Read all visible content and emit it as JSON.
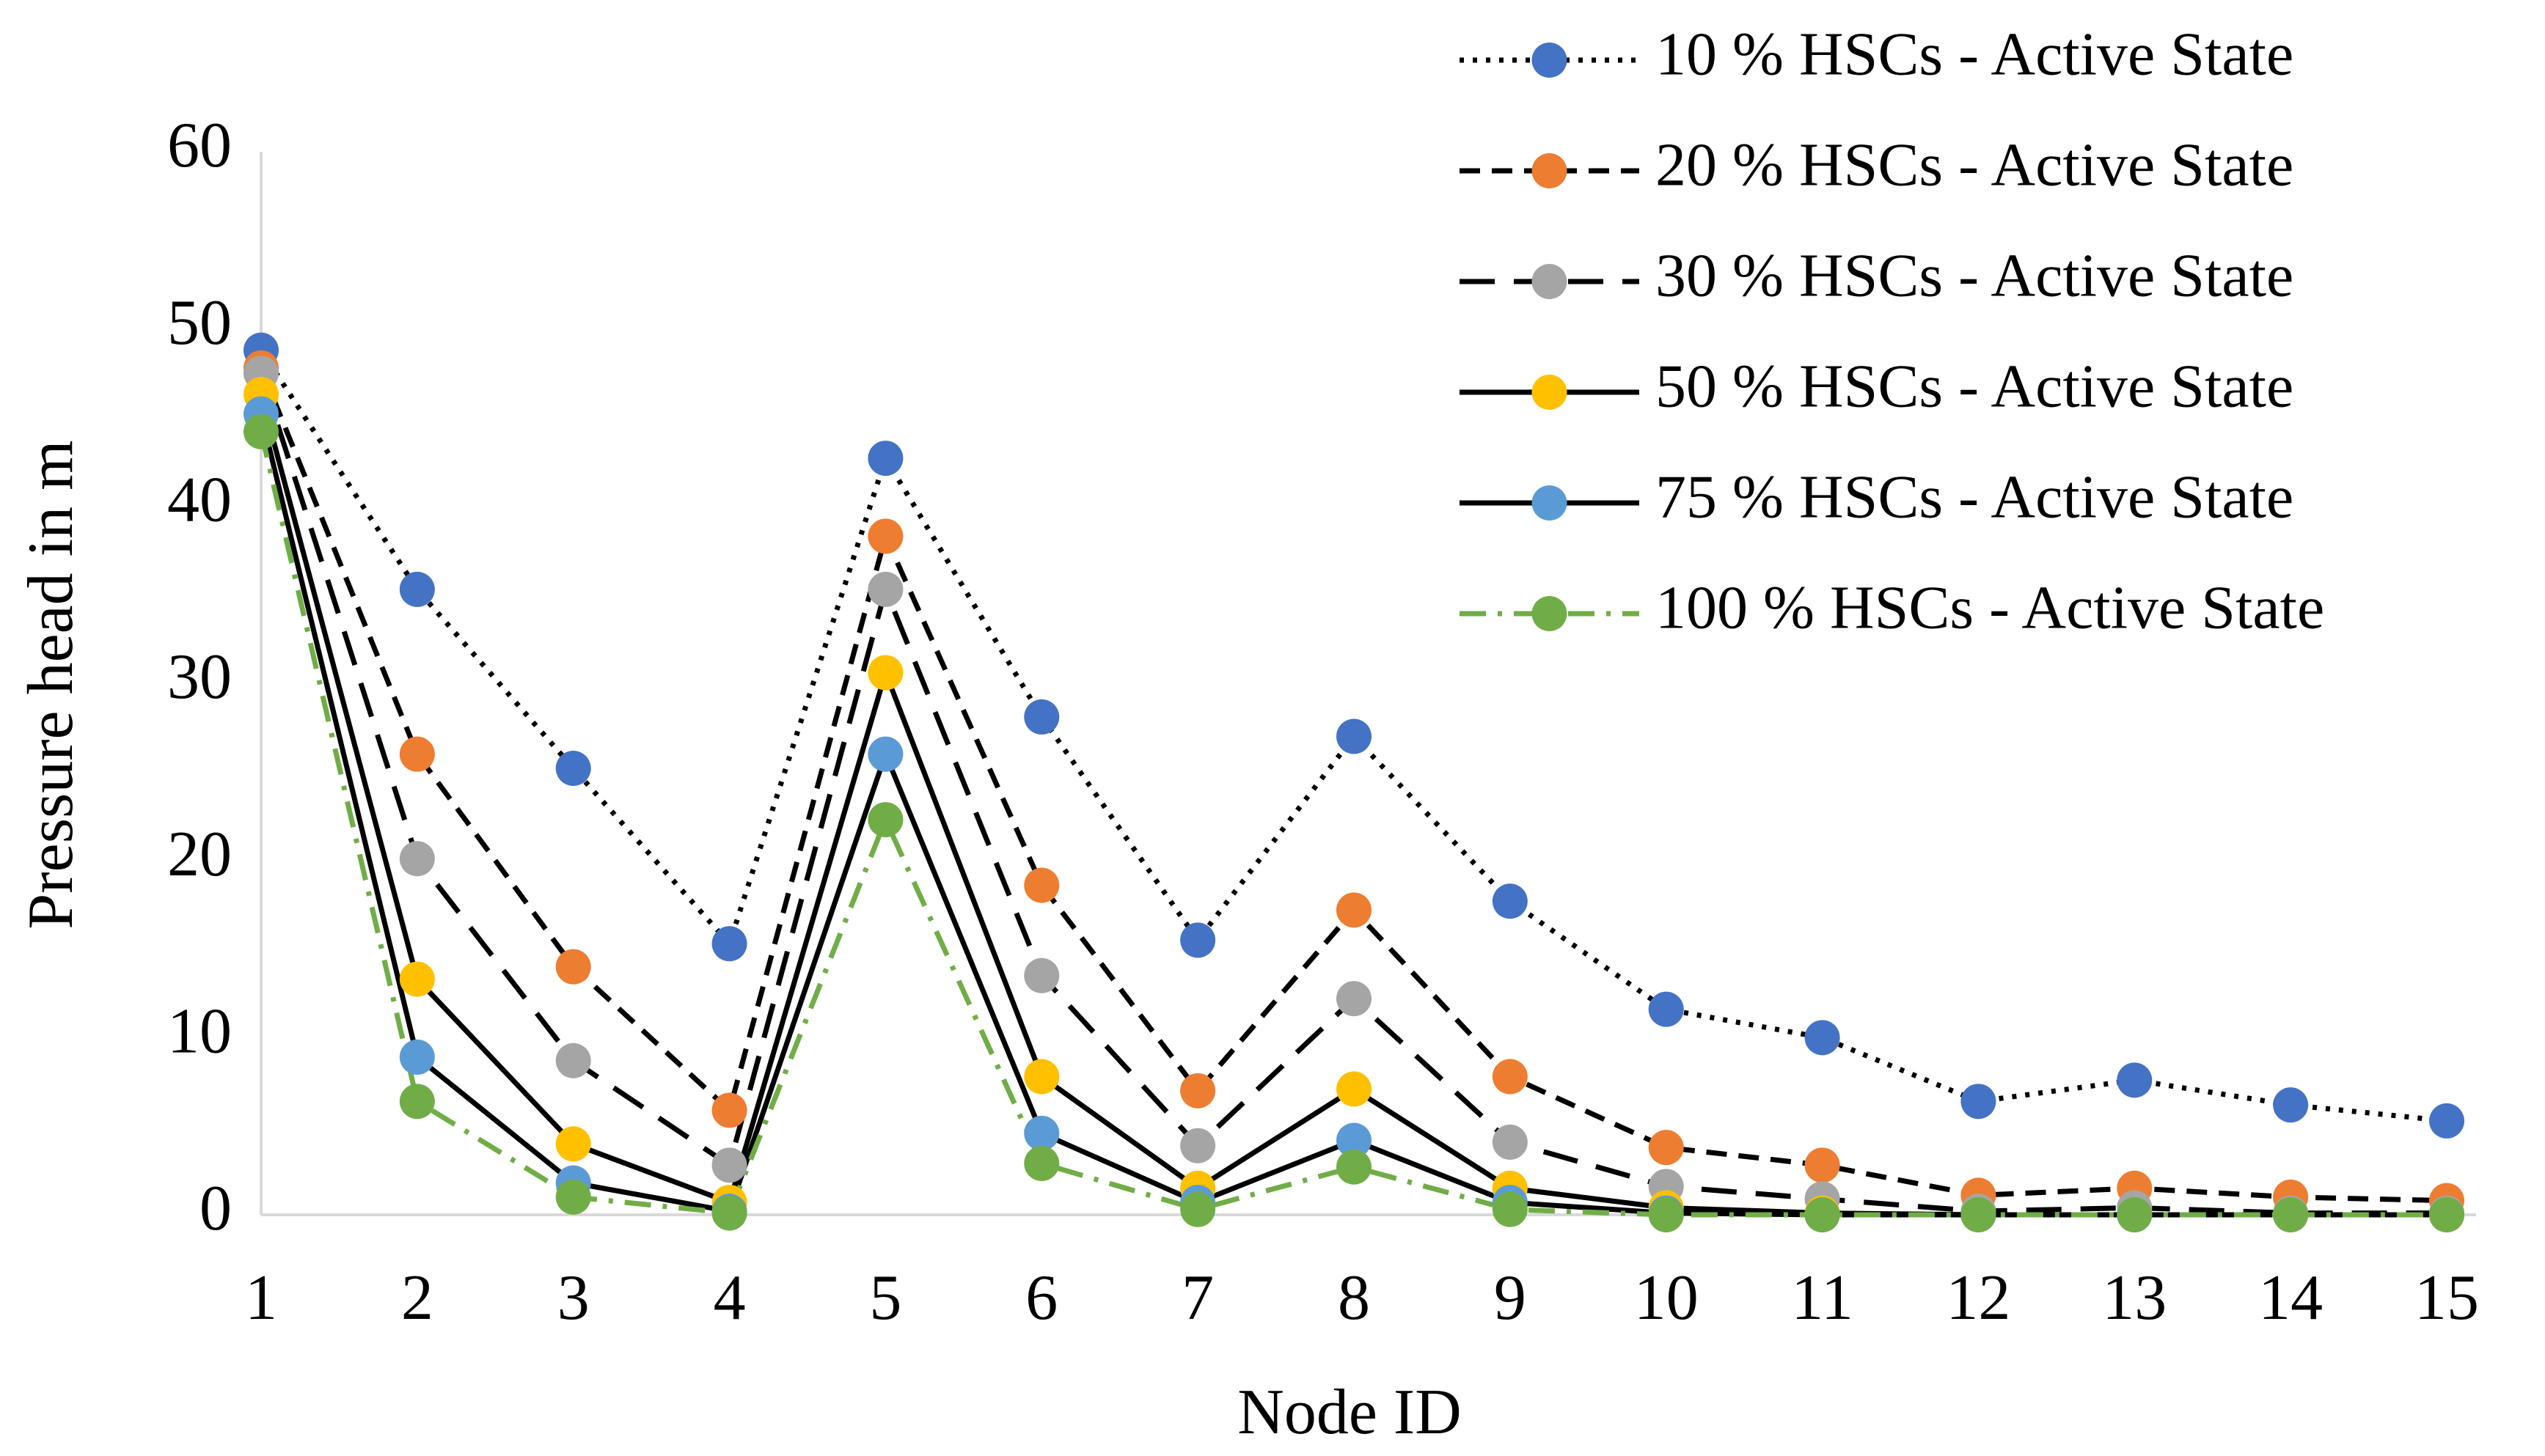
{
  "chart_data": {
    "type": "line",
    "x_label": "Node ID",
    "y_label": "Pressure head in m",
    "categories": [
      "1",
      "2",
      "3",
      "4",
      "5",
      "6",
      "7",
      "8",
      "9",
      "10",
      "11",
      "12",
      "13",
      "14",
      "15"
    ],
    "ylim": [
      0,
      60
    ],
    "yticks": [
      0,
      10,
      20,
      30,
      40,
      50,
      60
    ],
    "grid": false,
    "legend": "top-right",
    "series": [
      {
        "name": "10 % HSCs - Active State",
        "color": "#4472c4",
        "line_color": "#000000",
        "dash": "dotted",
        "values": [
          48.8,
          35.3,
          25.2,
          15.3,
          42.7,
          28.1,
          15.5,
          27.0,
          17.7,
          11.6,
          10.0,
          6.4,
          7.6,
          6.2,
          5.3
        ]
      },
      {
        "name": "20 % HSCs - Active State",
        "color": "#ed7d31",
        "line_color": "#000000",
        "dash": "dashed",
        "values": [
          47.8,
          26.0,
          14.0,
          5.9,
          38.3,
          18.6,
          7.0,
          17.2,
          7.8,
          3.8,
          2.8,
          1.1,
          1.5,
          1.0,
          0.8
        ]
      },
      {
        "name": "30 % HSCs - Active State",
        "color": "#a5a5a5",
        "line_color": "#000000",
        "dash": "long-dashed",
        "values": [
          47.5,
          20.1,
          8.7,
          2.8,
          35.3,
          13.5,
          3.9,
          12.2,
          4.1,
          1.6,
          0.9,
          0.2,
          0.4,
          0.1,
          0.1
        ]
      },
      {
        "name": "50 % HSCs - Active State",
        "color": "#ffc000",
        "line_color": "#000000",
        "dash": "solid",
        "values": [
          46.3,
          13.3,
          4.0,
          0.7,
          30.6,
          7.8,
          1.5,
          7.1,
          1.5,
          0.4,
          0.1,
          0,
          0,
          0,
          0
        ]
      },
      {
        "name": "75 % HSCs - Active State",
        "color": "#5b9bd5",
        "line_color": "#000000",
        "dash": "solid",
        "values": [
          45.2,
          8.9,
          1.8,
          0.2,
          26.0,
          4.6,
          0.7,
          4.2,
          0.7,
          0.1,
          0,
          0,
          0,
          0,
          0
        ]
      },
      {
        "name": "100 % HSCs - Active State",
        "color": "#70ad47",
        "line_color": "#70ad47",
        "dash": "dash-dot",
        "values": [
          44.2,
          6.4,
          1.0,
          0.1,
          22.3,
          2.9,
          0.3,
          2.7,
          0.3,
          0,
          0,
          0,
          0,
          0,
          0
        ]
      }
    ]
  }
}
